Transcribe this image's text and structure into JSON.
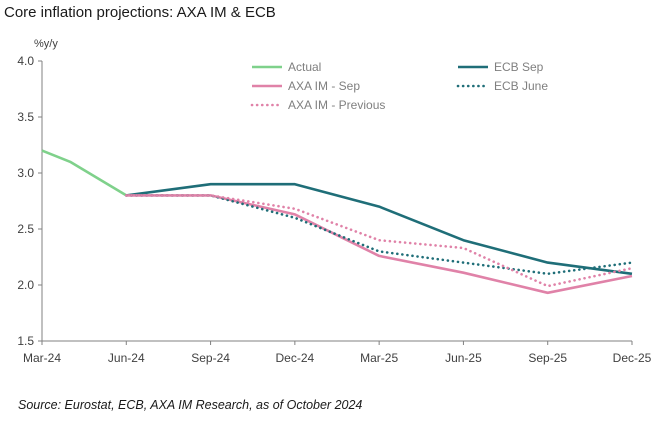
{
  "title": "Core inflation projections: AXA IM & ECB",
  "source": "Source: Eurostat, ECB, AXA IM Research, as of October 2024",
  "chart_data": {
    "type": "line",
    "title": "Core inflation projections: AXA IM & ECB",
    "ylabel": "%y/y",
    "xlabel": "",
    "x": [
      "Mar-24",
      "Apr-24",
      "May-24",
      "Jun-24",
      "Jul-24",
      "Aug-24",
      "Sep-24",
      "Oct-24",
      "Nov-24",
      "Dec-24",
      "Jan-25",
      "Feb-25",
      "Mar-25",
      "Apr-25",
      "May-25",
      "Jun-25",
      "Jul-25",
      "Aug-25",
      "Sep-25",
      "Oct-25",
      "Nov-25",
      "Dec-25"
    ],
    "x_ticks": [
      "Mar-24",
      "Jun-24",
      "Sep-24",
      "Dec-24",
      "Mar-25",
      "Jun-25",
      "Sep-25",
      "Dec-25"
    ],
    "ylim": [
      1.5,
      4.0
    ],
    "y_ticks": [
      "1.5",
      "2.0",
      "2.5",
      "3.0",
      "3.5",
      "4.0"
    ],
    "grid": false,
    "legend_position": "top",
    "series": [
      {
        "name": "Actual",
        "color": "#7fd18b",
        "style": "solid",
        "points": [
          [
            "Mar-24",
            3.2
          ],
          [
            "Apr-24",
            3.1
          ],
          [
            "Jun-24",
            2.8
          ]
        ]
      },
      {
        "name": "ECB Sep",
        "color": "#1f6e78",
        "style": "solid",
        "points": [
          [
            "Jun-24",
            2.8
          ],
          [
            "Sep-24",
            2.9
          ],
          [
            "Dec-24",
            2.9
          ],
          [
            "Mar-25",
            2.7
          ],
          [
            "Jun-25",
            2.4
          ],
          [
            "Sep-25",
            2.2
          ],
          [
            "Dec-25",
            2.1
          ]
        ]
      },
      {
        "name": "AXA IM - Sep",
        "color": "#e082a8",
        "style": "solid",
        "points": [
          [
            "Jun-24",
            2.8
          ],
          [
            "Sep-24",
            2.8
          ],
          [
            "Dec-24",
            2.63
          ],
          [
            "Mar-25",
            2.26
          ],
          [
            "Jun-25",
            2.11
          ],
          [
            "Sep-25",
            1.93
          ],
          [
            "Dec-25",
            2.08
          ]
        ]
      },
      {
        "name": "ECB June",
        "color": "#1f6e78",
        "style": "dotted",
        "points": [
          [
            "Jun-24",
            2.8
          ],
          [
            "Sep-24",
            2.8
          ],
          [
            "Dec-24",
            2.6
          ],
          [
            "Mar-25",
            2.3
          ],
          [
            "Jun-25",
            2.2
          ],
          [
            "Sep-25",
            2.1
          ],
          [
            "Dec-25",
            2.2
          ]
        ]
      },
      {
        "name": "AXA IM - Previous",
        "color": "#e082a8",
        "style": "dotted",
        "points": [
          [
            "Jun-24",
            2.8
          ],
          [
            "Sep-24",
            2.8
          ],
          [
            "Dec-24",
            2.68
          ],
          [
            "Mar-25",
            2.4
          ],
          [
            "Jun-25",
            2.33
          ],
          [
            "Sep-25",
            1.99
          ],
          [
            "Dec-25",
            2.15
          ]
        ]
      }
    ]
  }
}
